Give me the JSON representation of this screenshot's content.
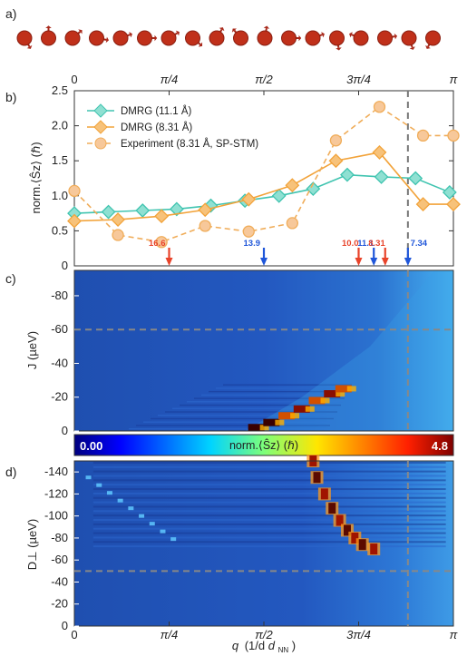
{
  "panels": {
    "a": "a)",
    "b": "b)",
    "c": "c)",
    "d": "d)"
  },
  "top_axis_ticks": [
    "0",
    "π/4",
    "π/2",
    "3π/4",
    "π"
  ],
  "colors": {
    "dmrg111": "#40c4b0",
    "dmrg831": "#f2a33a",
    "exp": "#f0ad5a",
    "red_arrow": "#e8432a",
    "blue_arrow": "#1f56d9",
    "dash": "#777777",
    "atom": "#c0301a"
  },
  "chart_data": [
    {
      "type": "line",
      "panel": "b",
      "ylabel": "norm.⟨Ŝz⟩ (ℏ)",
      "ylim": [
        0,
        2.5
      ],
      "yticks": [
        "0",
        "0.5",
        "1.0",
        "1.5",
        "2.0",
        "2.5"
      ],
      "xlim": [
        0,
        1
      ],
      "x_unit": "π",
      "vline_x": 0.88,
      "series": [
        {
          "name": "DMRG (11.1 Å)",
          "marker": "diamond",
          "style": "solid",
          "x": [
            0,
            0.09,
            0.18,
            0.27,
            0.36,
            0.45,
            0.54,
            0.63,
            0.72,
            0.81,
            0.9,
            0.99
          ],
          "y": [
            0.75,
            0.77,
            0.79,
            0.81,
            0.86,
            0.93,
            1.0,
            1.1,
            1.3,
            1.27,
            1.25,
            1.05
          ]
        },
        {
          "name": "DMRG (8.31 Å)",
          "marker": "diamond",
          "style": "solid",
          "x": [
            0,
            0.115,
            0.23,
            0.345,
            0.46,
            0.575,
            0.69,
            0.805,
            0.92,
            1.0
          ],
          "y": [
            0.64,
            0.66,
            0.71,
            0.8,
            0.95,
            1.15,
            1.5,
            1.62,
            0.88,
            0.88
          ]
        },
        {
          "name": "Experiment (8.31 Å, SP-STM)",
          "marker": "circle",
          "style": "dashed",
          "x": [
            0,
            0.115,
            0.23,
            0.345,
            0.46,
            0.575,
            0.69,
            0.805,
            0.92,
            1.0
          ],
          "y": [
            1.07,
            0.44,
            0.34,
            0.57,
            0.49,
            0.61,
            1.79,
            2.27,
            1.86,
            1.86
          ]
        }
      ],
      "arrows": [
        {
          "label": "16.6",
          "x": 0.25,
          "color": "red"
        },
        {
          "label": "13.9",
          "x": 0.5,
          "color": "blue"
        },
        {
          "label": "10.0",
          "x": 0.75,
          "color": "red"
        },
        {
          "label": "11.1",
          "x": 0.79,
          "color": "blue"
        },
        {
          "label": "8.31",
          "x": 0.82,
          "color": "red"
        },
        {
          "label": "7.34",
          "x": 0.88,
          "color": "blue"
        }
      ]
    },
    {
      "type": "heatmap",
      "panel": "c",
      "ylabel": "J (µeV)",
      "yticks": [
        "-80",
        "-60",
        "-40",
        "-20",
        "0"
      ],
      "ylim": [
        0,
        -95
      ],
      "hline_y": -60,
      "ridge": [
        {
          "x": 0.48,
          "y": -2
        },
        {
          "x": 0.52,
          "y": -5
        },
        {
          "x": 0.56,
          "y": -9
        },
        {
          "x": 0.6,
          "y": -13
        },
        {
          "x": 0.64,
          "y": -18
        },
        {
          "x": 0.68,
          "y": -22
        },
        {
          "x": 0.71,
          "y": -25
        }
      ]
    },
    {
      "type": "heatmap",
      "panel": "d",
      "ylabel": "D⊥ (µeV)",
      "xlabel": "q (1/dNN)",
      "xticks": [
        "0",
        "π/4",
        "π/2",
        "3π/4",
        "π"
      ],
      "yticks": [
        "-140",
        "-120",
        "-100",
        "-80",
        "-60",
        "-40",
        "-20",
        "0"
      ],
      "ylim": [
        0,
        -150
      ],
      "hline_y": -50,
      "ridge": [
        {
          "x": 0.63,
          "y": -150
        },
        {
          "x": 0.64,
          "y": -135
        },
        {
          "x": 0.66,
          "y": -120
        },
        {
          "x": 0.68,
          "y": -107
        },
        {
          "x": 0.7,
          "y": -96
        },
        {
          "x": 0.72,
          "y": -87
        },
        {
          "x": 0.74,
          "y": -80
        },
        {
          "x": 0.76,
          "y": -74
        },
        {
          "x": 0.79,
          "y": -70
        }
      ]
    }
  ],
  "colorbar": {
    "min": "0.00",
    "max": "4.8",
    "label": "norm.⟨Ŝz⟩ (ℏ)"
  },
  "d_xlabel_q": "q",
  "d_xlabel_unit": "(1/d",
  "d_xlabel_sub": "NN",
  "d_xlabel_close": ")"
}
